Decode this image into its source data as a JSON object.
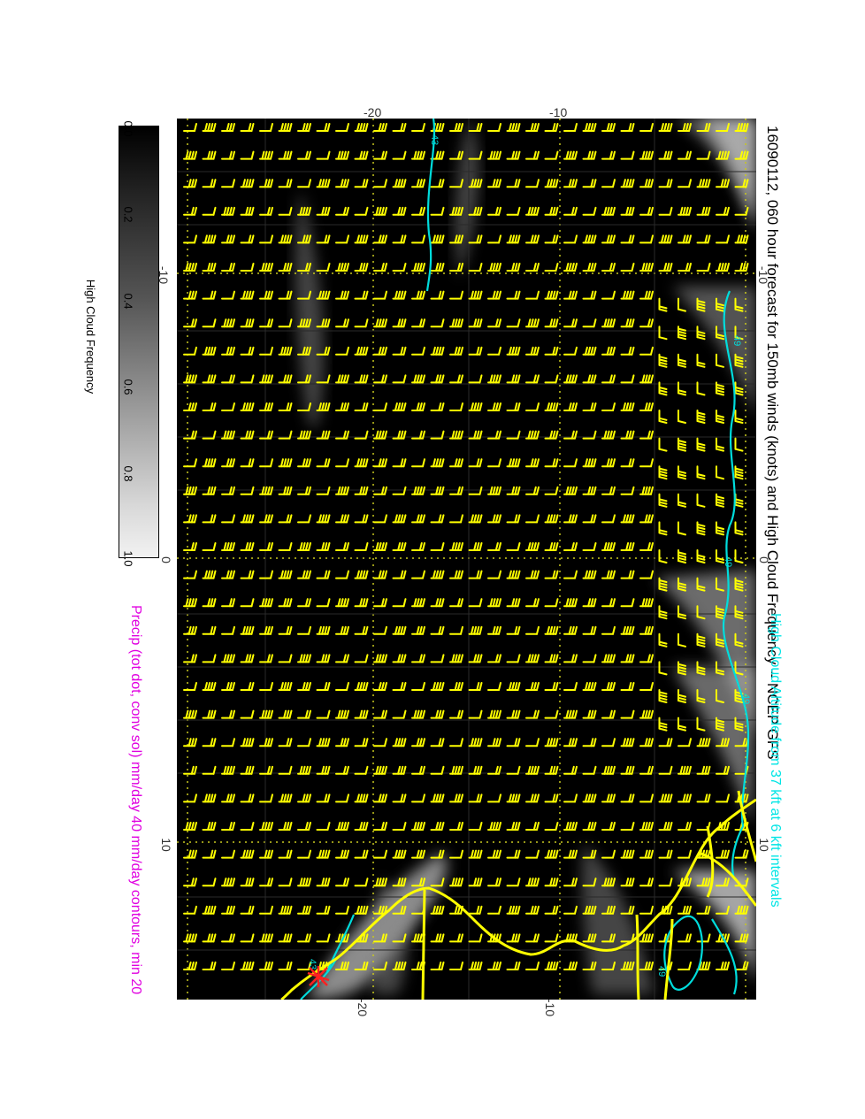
{
  "title": "16090112, 060 hour forecast for 150mb winds (knots) and High Cloud Frequency -- NCEP GFS",
  "subtitle_cyan": "High Cloud Altitude from 37 kft at 6 kft intervals",
  "subtitle_magenta": "Precip (tot dot, conv sol) mm/day 40 mm/day contours, min 20",
  "colorbar": {
    "title": "High Cloud Frequency",
    "labels": [
      "0.0",
      "0.2",
      "0.4",
      "0.6",
      "0.8",
      "1.0"
    ]
  },
  "axis_ticks": {
    "top": [
      "-20",
      "-10"
    ],
    "bottom": [
      "-20",
      "-10"
    ],
    "left": [
      "-10",
      "0",
      "10"
    ],
    "right": [
      "-10",
      "0",
      "10"
    ]
  },
  "contour_labels": [
    "43",
    "49",
    "49",
    "49",
    "49",
    "43"
  ],
  "colors": {
    "barbs": "#ffff00",
    "coast": "#ffff00",
    "contour": "#00e5e5",
    "grid": "#bdbd20",
    "marker": "#ff2020",
    "title_cyan": "#00e5e5",
    "title_magenta": "#e000e0"
  },
  "icons": [
    "wind-barb-icon",
    "storm-star-icon"
  ]
}
